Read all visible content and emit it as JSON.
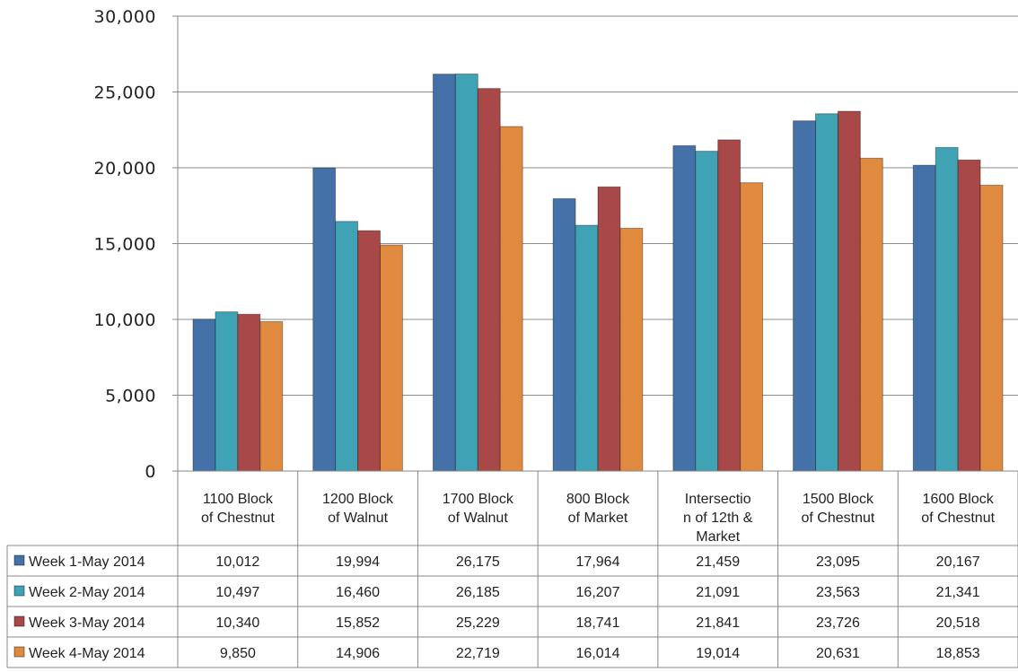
{
  "chart_data": {
    "type": "bar",
    "categories": [
      [
        "1100 Block",
        "of Chestnut"
      ],
      [
        "1200 Block",
        "of Walnut"
      ],
      [
        "1700 Block",
        "of Walnut"
      ],
      [
        "800 Block",
        "of Market"
      ],
      [
        "Intersectio",
        "n of 12th &",
        "Market"
      ],
      [
        "1500 Block",
        "of Chestnut"
      ],
      [
        "1600 Block",
        "of Chestnut"
      ]
    ],
    "series": [
      {
        "name": "Week 1-May 2014",
        "color": "#4472a8",
        "values": [
          10012,
          19994,
          26175,
          17964,
          21459,
          23095,
          20167
        ],
        "labels": [
          "10,012",
          "19,994",
          "26,175",
          "17,964",
          "21,459",
          "23,095",
          "20,167"
        ]
      },
      {
        "name": "Week 2-May 2014",
        "color": "#3fa3b5",
        "values": [
          10497,
          16460,
          26185,
          16207,
          21091,
          23563,
          21341
        ],
        "labels": [
          "10,497",
          "16,460",
          "26,185",
          "16,207",
          "21,091",
          "23,563",
          "21,341"
        ]
      },
      {
        "name": "Week 3-May 2014",
        "color": "#a84848",
        "values": [
          10340,
          15852,
          25229,
          18741,
          21841,
          23726,
          20518
        ],
        "labels": [
          "10,340",
          "15,852",
          "25,229",
          "18,741",
          "21,841",
          "23,726",
          "20,518"
        ]
      },
      {
        "name": "Week 4-May 2014",
        "color": "#df8a3f",
        "values": [
          9850,
          14906,
          22719,
          16014,
          19014,
          20631,
          18853
        ],
        "labels": [
          "9,850",
          "14,906",
          "22,719",
          "16,014",
          "19,014",
          "20,631",
          "18,853"
        ]
      }
    ],
    "ylim": [
      0,
      30000
    ],
    "yticks": [
      0,
      5000,
      10000,
      15000,
      20000,
      25000,
      30000
    ],
    "ytick_labels": [
      "0",
      "5,000",
      "10,000",
      "15,000",
      "20,000",
      "25,000",
      "30,000"
    ],
    "grid": true,
    "legend": "data-table",
    "data_table": true
  }
}
